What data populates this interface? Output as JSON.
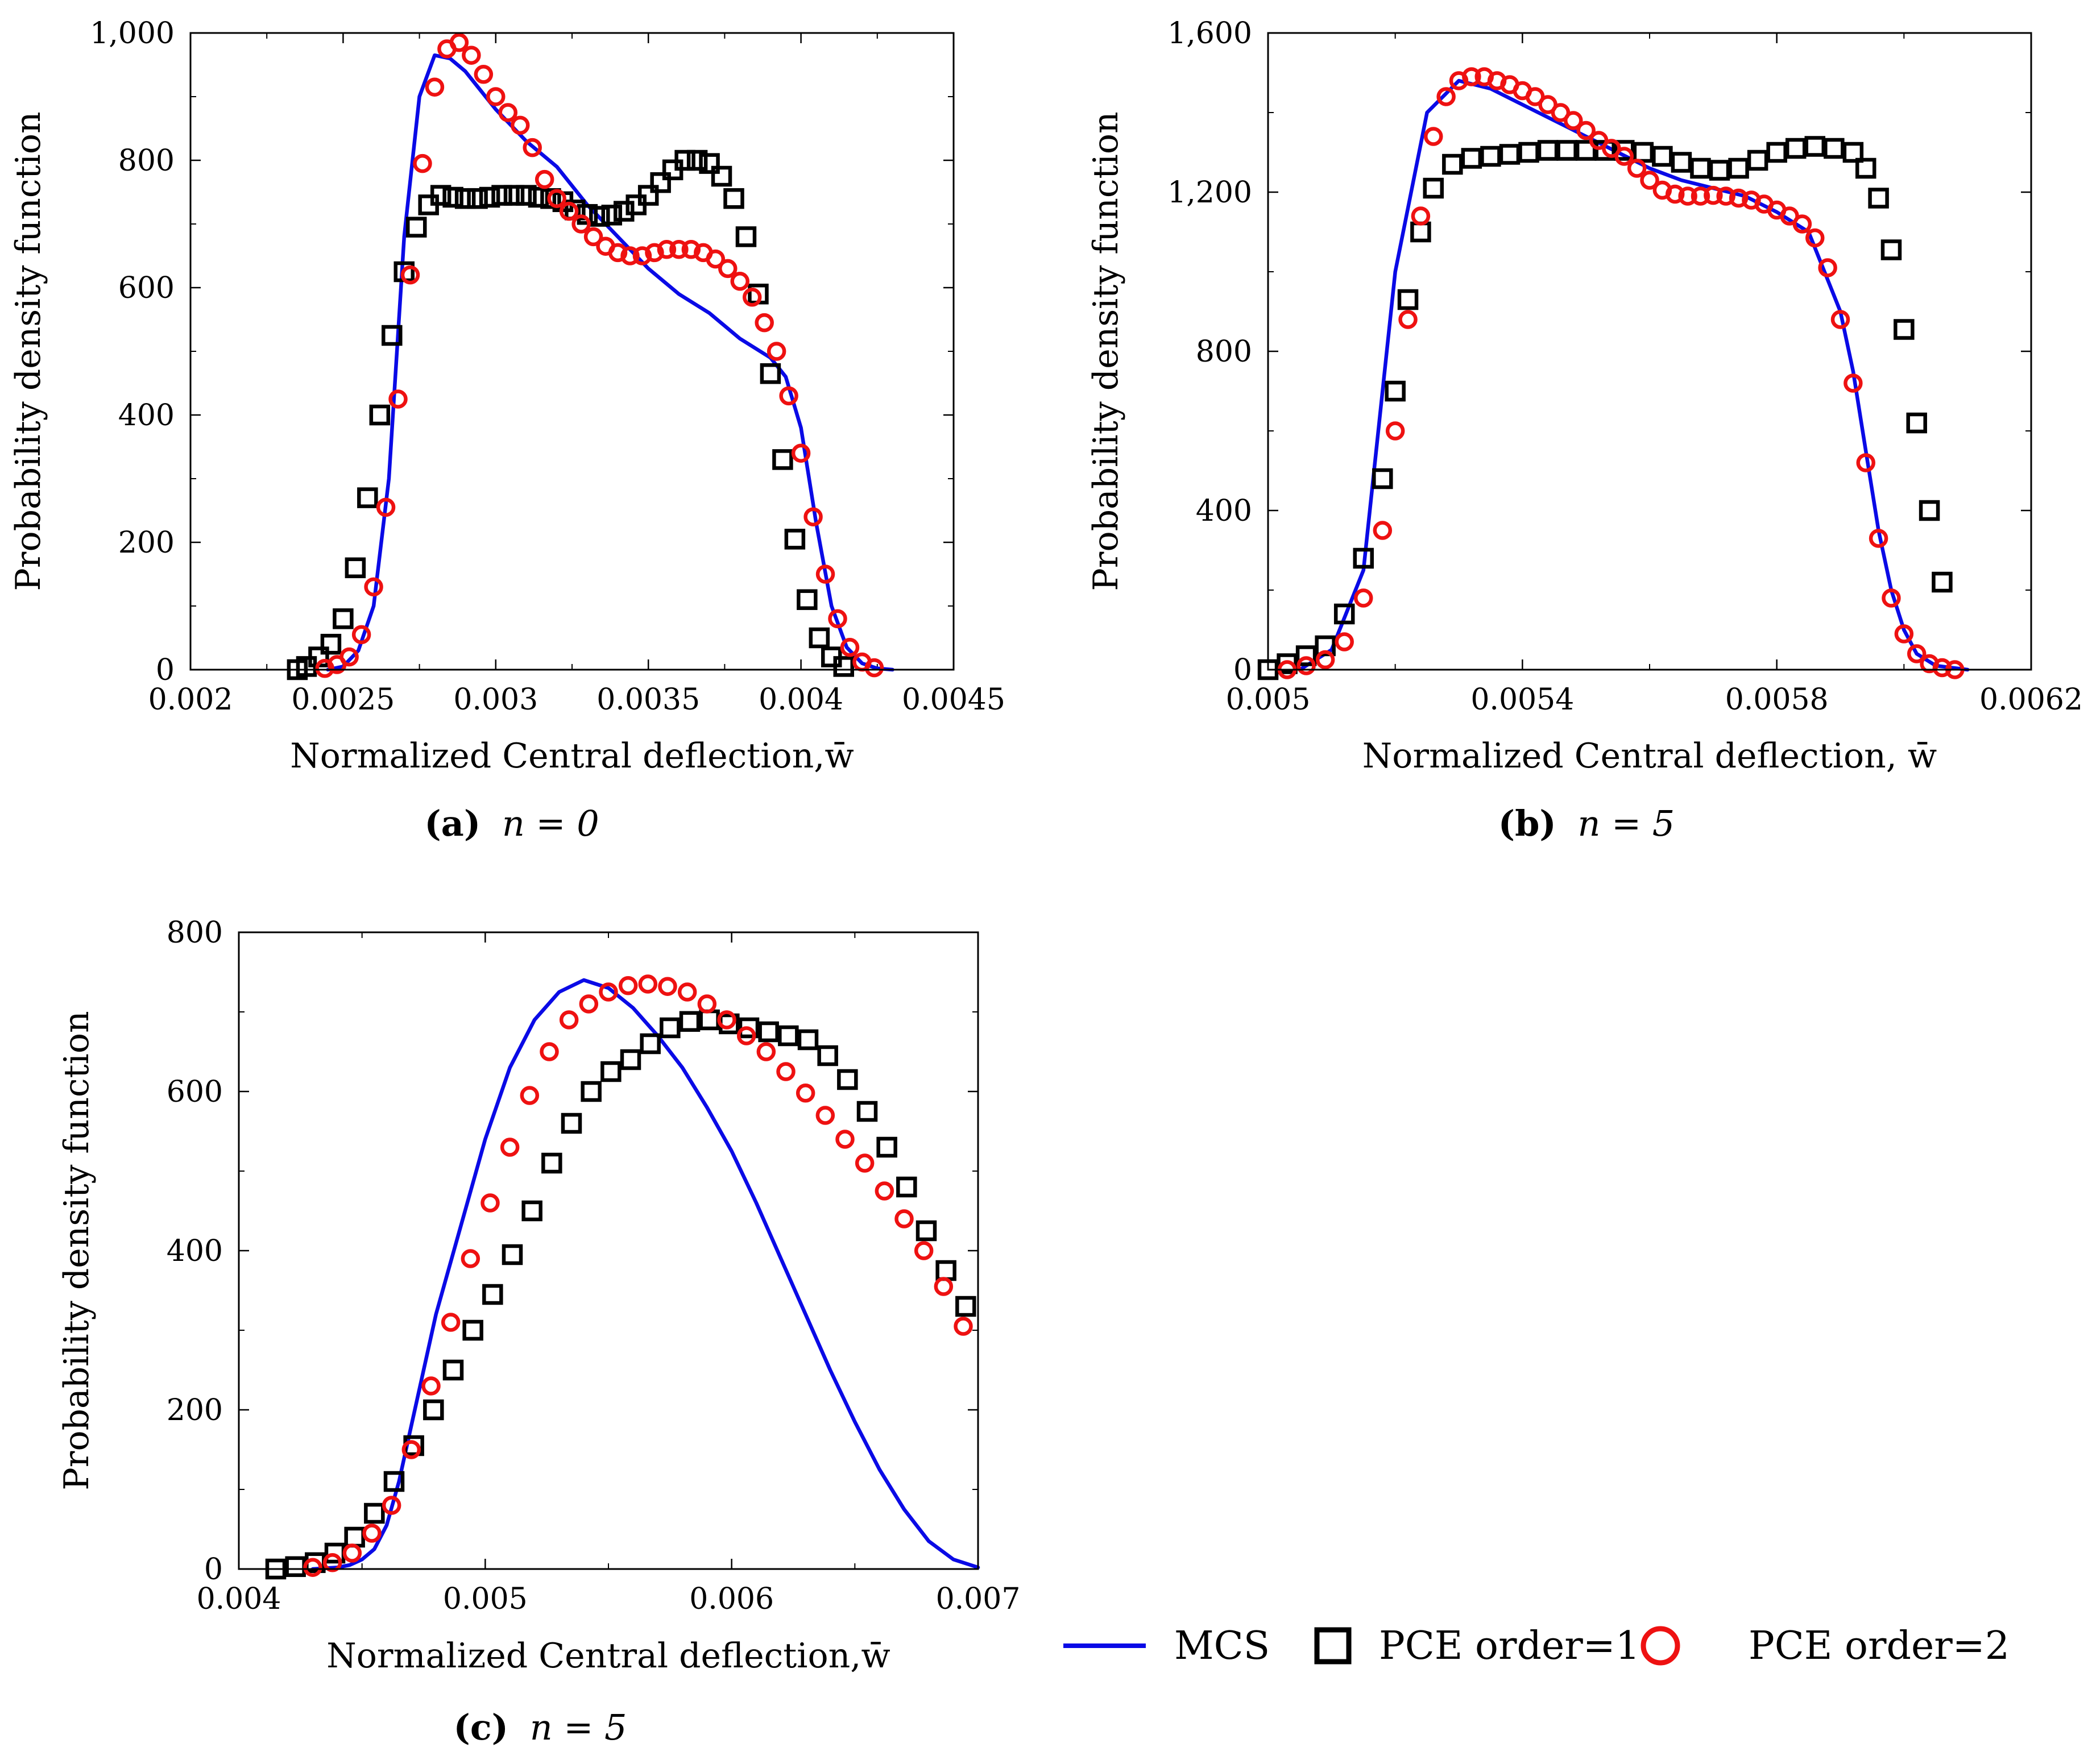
{
  "colors": {
    "mcs": "#0a0ae6",
    "pce1": "#000000",
    "pce2": "#ee1111"
  },
  "legend": {
    "mcs": "MCS",
    "pce1": "PCE order=1",
    "pce2": "PCE order=2"
  },
  "chart_data": [
    {
      "id": "a",
      "type": "line",
      "caption_letter": "(a)",
      "caption_text": "n = 0",
      "xlabel": "Normalized Central deflection,w̄",
      "ylabel": "Probability density function",
      "xlim": [
        0.002,
        0.0045
      ],
      "ylim": [
        0,
        1000
      ],
      "xticks": [
        0.002,
        0.0025,
        0.003,
        0.0035,
        0.004,
        0.0045
      ],
      "xtick_labels": [
        "0.002",
        "0.0025",
        "0.003",
        "0.0035",
        "0.004",
        "0.0045"
      ],
      "yticks": [
        0,
        200,
        400,
        600,
        800,
        1000
      ],
      "ytick_labels": [
        "0",
        "200",
        "400",
        "600",
        "800",
        "1,000"
      ],
      "series": [
        {
          "name": "MCS",
          "kind": "line",
          "x": [
            0.00245,
            0.0025,
            0.00255,
            0.0026,
            0.00265,
            0.0027,
            0.00275,
            0.0028,
            0.00285,
            0.0029,
            0.00295,
            0.003,
            0.0031,
            0.0032,
            0.0033,
            0.0034,
            0.0035,
            0.0036,
            0.0037,
            0.0038,
            0.0039,
            0.00395,
            0.004,
            0.00405,
            0.0041,
            0.00415,
            0.0042,
            0.00425,
            0.0043
          ],
          "y": [
            0,
            5,
            30,
            100,
            300,
            680,
            900,
            965,
            960,
            940,
            910,
            880,
            830,
            790,
            730,
            680,
            630,
            590,
            560,
            520,
            490,
            460,
            380,
            230,
            100,
            35,
            10,
            2,
            0
          ]
        },
        {
          "name": "PCE order=1",
          "kind": "square",
          "x": [
            0.00235,
            0.00238,
            0.00242,
            0.00246,
            0.0025,
            0.00254,
            0.00258,
            0.00262,
            0.00266,
            0.0027,
            0.00274,
            0.00278,
            0.00282,
            0.00286,
            0.0029,
            0.00294,
            0.00298,
            0.00302,
            0.00306,
            0.0031,
            0.00314,
            0.00318,
            0.00322,
            0.00326,
            0.0033,
            0.00334,
            0.00338,
            0.00342,
            0.00346,
            0.0035,
            0.00354,
            0.00358,
            0.00362,
            0.00366,
            0.0037,
            0.00374,
            0.00378,
            0.00382,
            0.00386,
            0.0039,
            0.00394,
            0.00398,
            0.00402,
            0.00406,
            0.0041,
            0.00414
          ],
          "y": [
            0,
            5,
            20,
            40,
            80,
            160,
            270,
            400,
            525,
            625,
            695,
            730,
            745,
            742,
            740,
            740,
            742,
            745,
            745,
            745,
            742,
            740,
            735,
            722,
            715,
            712,
            714,
            720,
            730,
            745,
            765,
            785,
            800,
            800,
            795,
            775,
            740,
            680,
            590,
            465,
            330,
            205,
            110,
            50,
            20,
            5
          ]
        },
        {
          "name": "PCE order=2",
          "kind": "circle",
          "x": [
            0.00244,
            0.00248,
            0.00252,
            0.00256,
            0.0026,
            0.00264,
            0.00268,
            0.00272,
            0.00276,
            0.0028,
            0.00284,
            0.00288,
            0.00292,
            0.00296,
            0.003,
            0.00304,
            0.00308,
            0.00312,
            0.00316,
            0.0032,
            0.00324,
            0.00328,
            0.00332,
            0.00336,
            0.0034,
            0.00344,
            0.00348,
            0.00352,
            0.00356,
            0.0036,
            0.00364,
            0.00368,
            0.00372,
            0.00376,
            0.0038,
            0.00384,
            0.00388,
            0.00392,
            0.00396,
            0.004,
            0.00404,
            0.00408,
            0.00412,
            0.00416,
            0.0042,
            0.00424
          ],
          "y": [
            2,
            8,
            20,
            55,
            130,
            255,
            425,
            620,
            795,
            915,
            975,
            985,
            965,
            935,
            900,
            875,
            855,
            820,
            770,
            740,
            720,
            700,
            680,
            665,
            655,
            650,
            650,
            655,
            660,
            660,
            660,
            655,
            645,
            630,
            610,
            585,
            545,
            500,
            430,
            340,
            240,
            150,
            80,
            35,
            12,
            3
          ]
        }
      ]
    },
    {
      "id": "b",
      "type": "line",
      "caption_letter": "(b)",
      "caption_text": "n = 5",
      "xlabel": "Normalized Central deflection, w̄",
      "ylabel": "Probability density function",
      "xlim": [
        0.005,
        0.0062
      ],
      "ylim": [
        0,
        1600
      ],
      "xticks": [
        0.005,
        0.0054,
        0.0058,
        0.0062
      ],
      "xtick_labels": [
        "0.005",
        "0.0054",
        "0.0058",
        "0.0062"
      ],
      "yticks": [
        0,
        400,
        800,
        1200,
        1600
      ],
      "ytick_labels": [
        "0",
        "400",
        "800",
        "1,200",
        "1,600"
      ],
      "series": [
        {
          "name": "MCS",
          "kind": "line",
          "x": [
            0.00505,
            0.0051,
            0.00515,
            0.0052,
            0.00525,
            0.0053,
            0.00535,
            0.0054,
            0.00545,
            0.0055,
            0.00555,
            0.0056,
            0.00565,
            0.0057,
            0.00575,
            0.0058,
            0.00585,
            0.0059,
            0.00592,
            0.00594,
            0.00596,
            0.00598,
            0.006,
            0.00602,
            0.00605,
            0.0061
          ],
          "y": [
            0,
            50,
            250,
            1000,
            1400,
            1480,
            1460,
            1420,
            1380,
            1340,
            1300,
            1260,
            1230,
            1210,
            1190,
            1150,
            1100,
            900,
            750,
            550,
            350,
            200,
            100,
            40,
            10,
            0
          ]
        },
        {
          "name": "PCE order=1",
          "kind": "square",
          "x": [
            0.005,
            0.00503,
            0.00506,
            0.00509,
            0.00512,
            0.00515,
            0.00518,
            0.0052,
            0.00522,
            0.00524,
            0.00526,
            0.00529,
            0.00532,
            0.00535,
            0.00538,
            0.00541,
            0.00544,
            0.00547,
            0.0055,
            0.00553,
            0.00556,
            0.00559,
            0.00562,
            0.00565,
            0.00568,
            0.00571,
            0.00574,
            0.00577,
            0.0058,
            0.00583,
            0.00586,
            0.00589,
            0.00592,
            0.00594,
            0.00596,
            0.00598,
            0.006,
            0.00602,
            0.00604,
            0.00606
          ],
          "y": [
            0,
            15,
            35,
            60,
            140,
            280,
            480,
            700,
            930,
            1100,
            1210,
            1270,
            1285,
            1290,
            1295,
            1300,
            1305,
            1305,
            1305,
            1305,
            1305,
            1300,
            1290,
            1275,
            1260,
            1255,
            1260,
            1280,
            1300,
            1310,
            1315,
            1310,
            1300,
            1260,
            1185,
            1055,
            855,
            620,
            400,
            220
          ]
        },
        {
          "name": "PCE order=2",
          "kind": "circle",
          "x": [
            0.00503,
            0.00506,
            0.00509,
            0.00512,
            0.00515,
            0.00518,
            0.0052,
            0.00522,
            0.00524,
            0.00526,
            0.00528,
            0.0053,
            0.00532,
            0.00534,
            0.00536,
            0.00538,
            0.0054,
            0.00542,
            0.00544,
            0.00546,
            0.00548,
            0.0055,
            0.00552,
            0.00554,
            0.00556,
            0.00558,
            0.0056,
            0.00562,
            0.00564,
            0.00566,
            0.00568,
            0.0057,
            0.00572,
            0.00574,
            0.00576,
            0.00578,
            0.0058,
            0.00582,
            0.00584,
            0.00586,
            0.00588,
            0.0059,
            0.00592,
            0.00594,
            0.00596,
            0.00598,
            0.006,
            0.00602,
            0.00604,
            0.00606,
            0.00608
          ],
          "y": [
            0,
            10,
            25,
            70,
            180,
            350,
            600,
            880,
            1140,
            1340,
            1440,
            1480,
            1490,
            1490,
            1480,
            1470,
            1455,
            1440,
            1420,
            1400,
            1380,
            1355,
            1330,
            1310,
            1290,
            1260,
            1230,
            1205,
            1195,
            1190,
            1190,
            1192,
            1190,
            1185,
            1180,
            1170,
            1155,
            1140,
            1120,
            1085,
            1010,
            880,
            720,
            520,
            330,
            180,
            90,
            40,
            15,
            5,
            0
          ]
        }
      ]
    },
    {
      "id": "c",
      "type": "line",
      "caption_letter": "(c)",
      "caption_text": "n = 5",
      "xlabel": "Normalized Central deflection,w̄",
      "ylabel": "Probability density function",
      "xlim": [
        0.004,
        0.007
      ],
      "ylim": [
        0,
        800
      ],
      "xticks": [
        0.004,
        0.005,
        0.006,
        0.007
      ],
      "xtick_labels": [
        "0.004",
        "0.005",
        "0.006",
        "0.007"
      ],
      "yticks": [
        0,
        200,
        400,
        600,
        800
      ],
      "ytick_labels": [
        "0",
        "200",
        "400",
        "600",
        "800"
      ],
      "series": [
        {
          "name": "MCS",
          "kind": "line",
          "x": [
            0.0043,
            0.0044,
            0.00445,
            0.0045,
            0.00455,
            0.0046,
            0.00465,
            0.0047,
            0.00475,
            0.0048,
            0.0049,
            0.005,
            0.0051,
            0.0052,
            0.0053,
            0.0054,
            0.0055,
            0.0056,
            0.0057,
            0.0058,
            0.0059,
            0.006,
            0.0061,
            0.0062,
            0.0063,
            0.0064,
            0.0065,
            0.0066,
            0.0067,
            0.0068,
            0.0069,
            0.007
          ],
          "y": [
            0,
            2,
            5,
            12,
            25,
            55,
            110,
            180,
            250,
            320,
            430,
            540,
            630,
            690,
            725,
            740,
            730,
            705,
            670,
            630,
            580,
            525,
            460,
            390,
            320,
            250,
            185,
            125,
            75,
            35,
            12,
            2
          ]
        },
        {
          "name": "PCE order=1",
          "kind": "square",
          "x": [
            0.00415,
            0.00423,
            0.00431,
            0.00439,
            0.00447,
            0.00455,
            0.00463,
            0.00471,
            0.00479,
            0.00487,
            0.00495,
            0.00503,
            0.00511,
            0.00519,
            0.00527,
            0.00535,
            0.00543,
            0.00551,
            0.00559,
            0.00567,
            0.00575,
            0.00583,
            0.00591,
            0.00599,
            0.00607,
            0.00615,
            0.00623,
            0.00631,
            0.00639,
            0.00647,
            0.00655,
            0.00663,
            0.00671,
            0.00679,
            0.00687,
            0.00695
          ],
          "y": [
            0,
            3,
            8,
            20,
            40,
            70,
            110,
            155,
            200,
            250,
            300,
            345,
            395,
            450,
            510,
            560,
            600,
            625,
            640,
            660,
            680,
            688,
            690,
            685,
            680,
            675,
            670,
            665,
            645,
            615,
            575,
            530,
            480,
            425,
            375,
            330
          ]
        },
        {
          "name": "PCE order=2",
          "kind": "circle",
          "x": [
            0.0043,
            0.00438,
            0.00446,
            0.00454,
            0.00462,
            0.0047,
            0.00478,
            0.00486,
            0.00494,
            0.00502,
            0.0051,
            0.00518,
            0.00526,
            0.00534,
            0.00542,
            0.0055,
            0.00558,
            0.00566,
            0.00574,
            0.00582,
            0.0059,
            0.00598,
            0.00606,
            0.00614,
            0.00622,
            0.0063,
            0.00638,
            0.00646,
            0.00654,
            0.00662,
            0.0067,
            0.00678,
            0.00686,
            0.00694
          ],
          "y": [
            2,
            8,
            20,
            45,
            80,
            150,
            230,
            310,
            390,
            460,
            530,
            595,
            650,
            690,
            710,
            725,
            733,
            735,
            732,
            725,
            710,
            690,
            670,
            650,
            625,
            598,
            570,
            540,
            510,
            475,
            440,
            400,
            355,
            305
          ]
        }
      ]
    }
  ]
}
